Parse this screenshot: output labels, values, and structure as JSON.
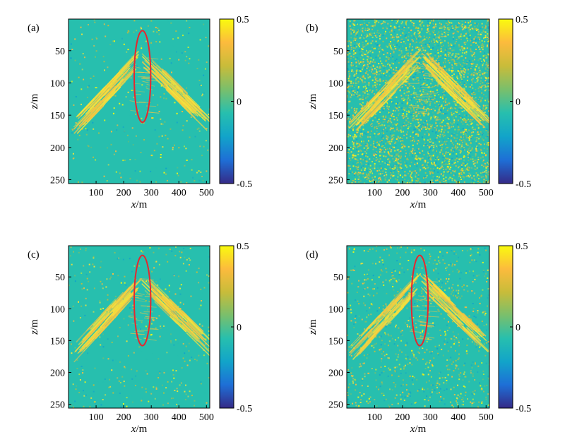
{
  "colors": {
    "field_background": "#27bfae",
    "colormap": [
      "#352a87",
      "#1e6fd6",
      "#12a4c9",
      "#27bfae",
      "#79bf6c",
      "#c8bc3a",
      "#fcbb3d",
      "#f9fb0e"
    ],
    "ellipse": "#e6262e",
    "event_color": "#f4c542"
  },
  "chart_data": [
    {
      "type": "heatmap",
      "panel_label": "(a)",
      "xlabel": "x/m",
      "ylabel": "z/m",
      "xlim": [
        0,
        512
      ],
      "ylim": [
        256,
        1
      ],
      "xticks": [
        100,
        200,
        300,
        400,
        500
      ],
      "yticks": [
        50,
        100,
        150,
        200,
        250
      ],
      "colorbar": {
        "ticks": [
          0.5,
          0,
          -0.5
        ],
        "tick_labels": [
          "0.5",
          "0",
          "-0.5"
        ],
        "range": [
          -0.5,
          0.5
        ]
      },
      "noise_level": 0.08,
      "events": {
        "apex_x": 265,
        "apex_z": 45,
        "left_end_x": 10,
        "left_end_z": 160,
        "right_end_x": 512,
        "right_end_z": 150
      },
      "ellipse": {
        "cx": 268,
        "cz": 90,
        "rx": 30,
        "rz": 71
      }
    },
    {
      "type": "heatmap",
      "panel_label": "(b)",
      "xlabel": "x/m",
      "ylabel": "z/m",
      "xlim": [
        0,
        512
      ],
      "ylim": [
        256,
        1
      ],
      "xticks": [
        100,
        200,
        300,
        400,
        500
      ],
      "yticks": [
        50,
        100,
        150,
        200,
        250
      ],
      "colorbar": {
        "ticks": [
          0.5,
          0,
          -0.5
        ],
        "tick_labels": [
          "0.5",
          "0",
          "-0.5"
        ],
        "range": [
          -0.5,
          0.5
        ]
      },
      "noise_level": 1.0,
      "events": {
        "apex_x": 265,
        "apex_z": 45,
        "left_end_x": 10,
        "left_end_z": 160,
        "right_end_x": 512,
        "right_end_z": 150
      },
      "ellipse": null
    },
    {
      "type": "heatmap",
      "panel_label": "(c)",
      "xlabel": "x/m",
      "ylabel": "z/m",
      "xlim": [
        0,
        512
      ],
      "ylim": [
        256,
        1
      ],
      "xticks": [
        100,
        200,
        300,
        400,
        500
      ],
      "yticks": [
        50,
        100,
        150,
        200,
        250
      ],
      "colorbar": {
        "ticks": [
          0.5,
          0,
          -0.5
        ],
        "tick_labels": [
          "0.5",
          "0",
          "-0.5"
        ],
        "range": [
          -0.5,
          0.5
        ]
      },
      "noise_level": 0.1,
      "events": {
        "apex_x": 265,
        "apex_z": 40,
        "left_end_x": 10,
        "left_end_z": 160,
        "right_end_x": 512,
        "right_end_z": 145
      },
      "ellipse": {
        "cx": 268,
        "cz": 87,
        "rx": 30,
        "rz": 71
      }
    },
    {
      "type": "heatmap",
      "panel_label": "(d)",
      "xlabel": "x/m",
      "ylabel": "z/m",
      "xlim": [
        0,
        512
      ],
      "ylim": [
        256,
        1
      ],
      "xticks": [
        100,
        200,
        300,
        400,
        500
      ],
      "yticks": [
        50,
        100,
        150,
        200,
        250
      ],
      "colorbar": {
        "ticks": [
          0.5,
          0,
          -0.5
        ],
        "tick_labels": [
          "0.5",
          "0",
          "-0.5"
        ],
        "range": [
          -0.5,
          0.5
        ]
      },
      "noise_level": 0.25,
      "events": {
        "apex_x": 265,
        "apex_z": 40,
        "left_end_x": 10,
        "left_end_z": 160,
        "right_end_x": 512,
        "right_end_z": 145
      },
      "ellipse": {
        "cx": 262,
        "cz": 87,
        "rx": 30,
        "rz": 71
      }
    }
  ]
}
